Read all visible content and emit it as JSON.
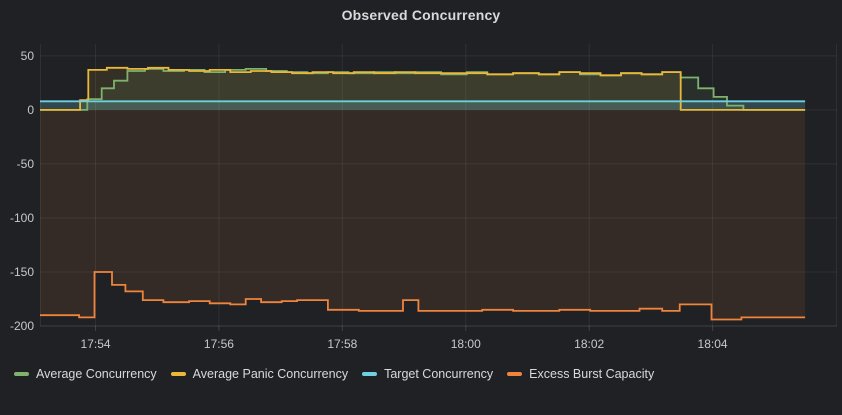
{
  "panel": {
    "title": "Observed Concurrency"
  },
  "colors": {
    "background": "#202124",
    "grid": "rgba(255,255,255,0.07)",
    "axis_line": "rgba(255,255,255,0.14)",
    "tick_text": "#c7c8ca",
    "title_text": "#d8d9da",
    "legend_text": "#d8d9da"
  },
  "chart_data": {
    "type": "line",
    "line_style": "step-after",
    "title": "Observed Concurrency",
    "xlabel": "",
    "ylabel": "",
    "grid": true,
    "legend_position": "bottom-left",
    "fill_to_zero": true,
    "x_range": [
      "17:53:06",
      "18:06:01"
    ],
    "data_end": "18:05:30",
    "x_ticks": [
      "17:54",
      "17:56",
      "17:58",
      "18:00",
      "18:02",
      "18:04"
    ],
    "ylim": [
      -200,
      61
    ],
    "y_ticks": [
      50,
      0,
      -50,
      -100,
      -150,
      -200
    ],
    "series": [
      {
        "name": "Average Concurrency",
        "color": "#7EB26D",
        "fill_opacity": 0.1,
        "points": [
          [
            "17:53:06",
            0
          ],
          [
            "17:53:52",
            10
          ],
          [
            "17:54:06",
            20
          ],
          [
            "17:54:18",
            27
          ],
          [
            "17:54:31",
            36
          ],
          [
            "17:54:48",
            38
          ],
          [
            "17:55:06",
            36
          ],
          [
            "17:55:26",
            37
          ],
          [
            "17:55:46",
            35
          ],
          [
            "17:56:06",
            37
          ],
          [
            "17:56:26",
            38
          ],
          [
            "17:56:46",
            36
          ],
          [
            "17:57:06",
            35
          ],
          [
            "17:57:26",
            34
          ],
          [
            "17:57:46",
            35
          ],
          [
            "17:58:06",
            34
          ],
          [
            "17:58:31",
            35
          ],
          [
            "17:58:51",
            34
          ],
          [
            "17:59:11",
            35
          ],
          [
            "17:59:36",
            33
          ],
          [
            "18:00:01",
            35
          ],
          [
            "18:00:21",
            33
          ],
          [
            "18:00:46",
            34
          ],
          [
            "18:01:11",
            33
          ],
          [
            "18:01:31",
            35
          ],
          [
            "18:01:51",
            33
          ],
          [
            "18:02:11",
            32
          ],
          [
            "18:02:31",
            34
          ],
          [
            "18:02:51",
            33
          ],
          [
            "18:03:11",
            35
          ],
          [
            "18:03:29",
            30
          ],
          [
            "18:03:46",
            20
          ],
          [
            "18:04:01",
            12
          ],
          [
            "18:04:14",
            4
          ],
          [
            "18:04:30",
            0
          ]
        ]
      },
      {
        "name": "Average Panic Concurrency",
        "color": "#EAB839",
        "fill_opacity": 0.1,
        "points": [
          [
            "17:53:06",
            0
          ],
          [
            "17:53:45",
            9
          ],
          [
            "17:53:53",
            37
          ],
          [
            "17:54:11",
            39
          ],
          [
            "17:54:31",
            38
          ],
          [
            "17:54:51",
            39
          ],
          [
            "17:55:11",
            37
          ],
          [
            "17:55:31",
            36
          ],
          [
            "17:55:51",
            37
          ],
          [
            "17:56:11",
            35
          ],
          [
            "17:56:31",
            36
          ],
          [
            "17:56:51",
            35
          ],
          [
            "17:57:11",
            34
          ],
          [
            "17:57:31",
            35
          ],
          [
            "17:57:51",
            34
          ],
          [
            "17:58:11",
            35
          ],
          [
            "17:58:31",
            34
          ],
          [
            "17:58:51",
            35
          ],
          [
            "17:59:11",
            34
          ],
          [
            "17:59:36",
            34
          ],
          [
            "18:00:01",
            34
          ],
          [
            "18:00:21",
            33
          ],
          [
            "18:00:46",
            34
          ],
          [
            "18:01:11",
            33
          ],
          [
            "18:01:31",
            35
          ],
          [
            "18:01:51",
            34
          ],
          [
            "18:02:11",
            32
          ],
          [
            "18:02:31",
            34
          ],
          [
            "18:02:51",
            33
          ],
          [
            "18:03:11",
            35
          ],
          [
            "18:03:29",
            0
          ]
        ]
      },
      {
        "name": "Target Concurrency",
        "color": "#6ED0E0",
        "fill_opacity": 0.22,
        "points": [
          [
            "17:53:06",
            8
          ]
        ]
      },
      {
        "name": "Excess Burst Capacity",
        "color": "#EF843C",
        "fill_opacity": 0.1,
        "points": [
          [
            "17:53:06",
            -190
          ],
          [
            "17:53:44",
            -192
          ],
          [
            "17:53:59",
            -150
          ],
          [
            "17:54:16",
            -162
          ],
          [
            "17:54:29",
            -168
          ],
          [
            "17:54:46",
            -176
          ],
          [
            "17:55:06",
            -178
          ],
          [
            "17:55:31",
            -177
          ],
          [
            "17:55:51",
            -179
          ],
          [
            "17:56:11",
            -180
          ],
          [
            "17:56:26",
            -175
          ],
          [
            "17:56:41",
            -178
          ],
          [
            "17:57:01",
            -177
          ],
          [
            "17:57:16",
            -176
          ],
          [
            "17:57:46",
            -185
          ],
          [
            "17:58:16",
            -186
          ],
          [
            "17:58:59",
            -176
          ],
          [
            "17:59:14",
            -186
          ],
          [
            "18:00:16",
            -185
          ],
          [
            "18:00:46",
            -186
          ],
          [
            "18:01:31",
            -185
          ],
          [
            "18:02:01",
            -186
          ],
          [
            "18:02:49",
            -184
          ],
          [
            "18:03:11",
            -186
          ],
          [
            "18:03:28",
            -180
          ],
          [
            "18:03:59",
            -194
          ],
          [
            "18:04:28",
            -192
          ]
        ]
      }
    ]
  }
}
